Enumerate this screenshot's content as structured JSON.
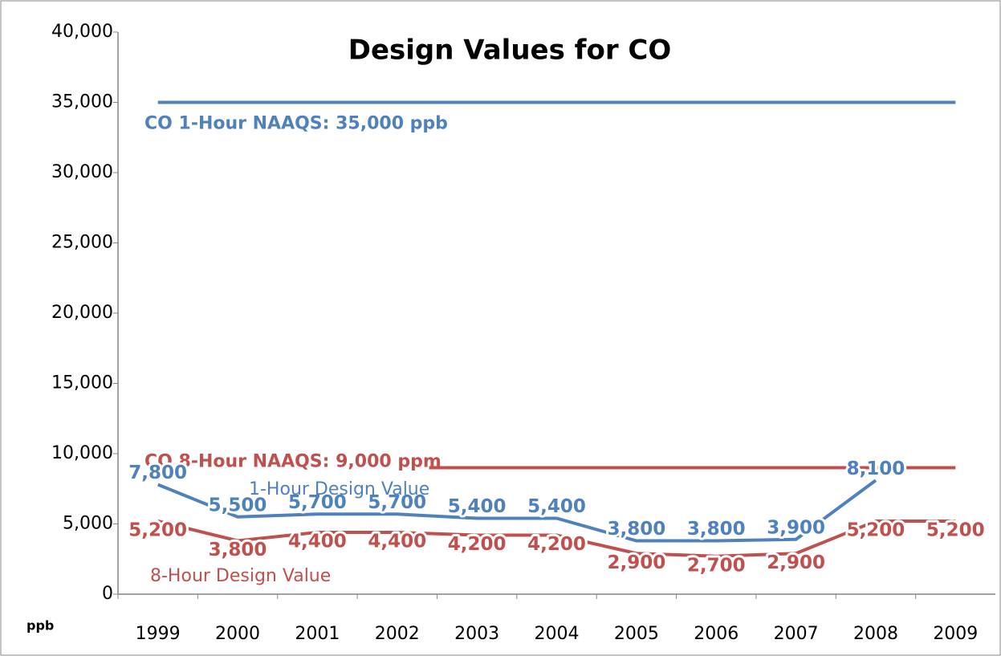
{
  "chart_data": {
    "type": "line",
    "title": "Design Values for CO",
    "y_axis_label": "ppb",
    "categories": [
      "1999",
      "2000",
      "2001",
      "2002",
      "2003",
      "2004",
      "2005",
      "2006",
      "2007",
      "2008",
      "2009"
    ],
    "series": [
      {
        "name": "1-Hour Design Value",
        "color": "#4f81bd",
        "values": [
          7800,
          5500,
          5700,
          5700,
          5400,
          5400,
          3800,
          3800,
          3900,
          8100,
          null
        ],
        "value_labels": [
          "7,800",
          "5,500",
          "5,700",
          "5,700",
          "5,400",
          "5,400",
          "3,800",
          "3,800",
          "3,900",
          "8,100",
          null
        ]
      },
      {
        "name": "8-Hour Design Value",
        "color": "#c0504d",
        "values": [
          5200,
          3800,
          4400,
          4400,
          4200,
          4200,
          2900,
          2700,
          2900,
          5200,
          5200
        ],
        "value_labels": [
          "5,200",
          "3,800",
          "4,400",
          "4,400",
          "4,200",
          "4,200",
          "2,900",
          "2,700",
          "2,900",
          "5,200",
          "5,200"
        ]
      }
    ],
    "reference_lines": [
      {
        "label": "CO 1-Hour NAAQS: 35,000 ppb",
        "value": 35000,
        "color": "#4f81bd"
      },
      {
        "label": "CO 8-Hour NAAQS: 9,000 ppm",
        "value": 9000,
        "color": "#c0504d"
      }
    ],
    "ylim": [
      0,
      40000
    ],
    "yticks": [
      0,
      {
        "value": 5000,
        "label": "5,000"
      },
      {
        "value": 10000,
        "label": "10,000"
      },
      {
        "value": 15000,
        "label": "15,000"
      },
      {
        "value": 20000,
        "label": "20,000"
      },
      {
        "value": 25000,
        "label": "25,000"
      },
      {
        "value": 30000,
        "label": "30,000"
      },
      {
        "value": 35000,
        "label": "35,000"
      },
      {
        "value": 40000,
        "label": "40,000"
      }
    ],
    "grid": false
  }
}
